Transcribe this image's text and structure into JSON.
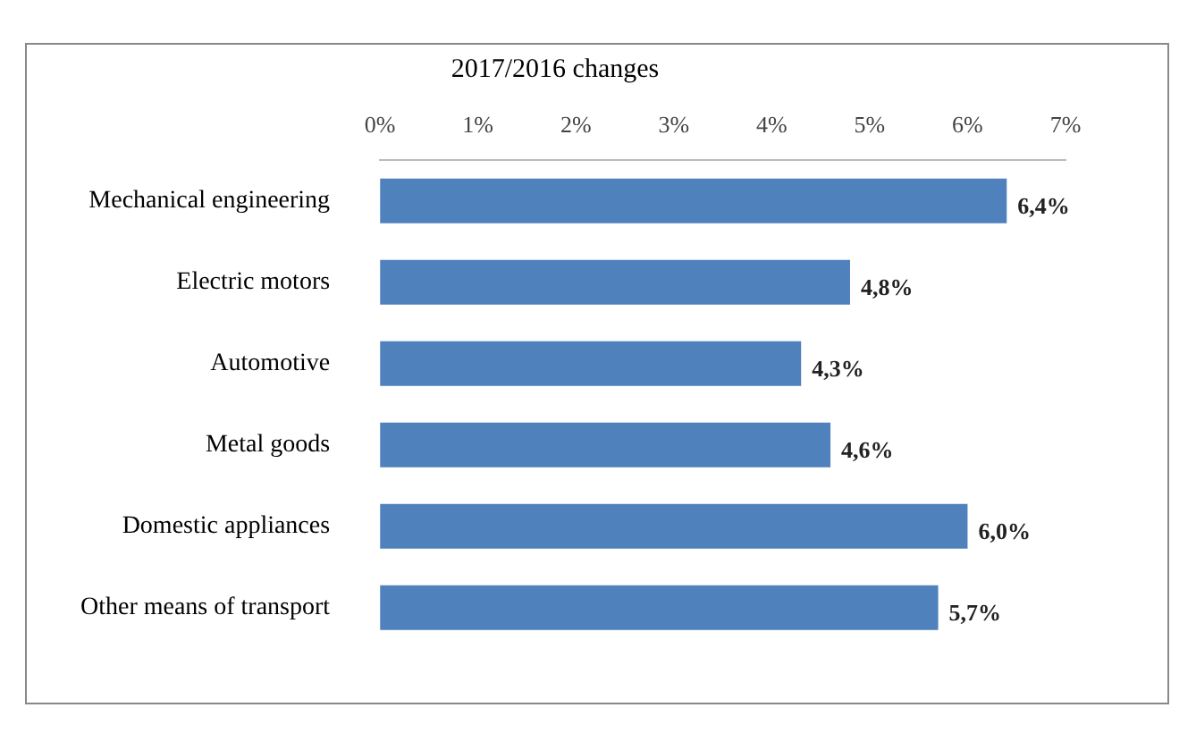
{
  "chart_data": {
    "type": "bar",
    "orientation": "horizontal",
    "title": "2017/2016 changes",
    "categories": [
      "Mechanical engineering",
      "Electric motors",
      "Automotive",
      "Metal goods",
      "Domestic appliances",
      "Other means of transport"
    ],
    "values": [
      6.4,
      4.8,
      4.3,
      4.6,
      6.0,
      5.7
    ],
    "value_labels": [
      "6,4%",
      "4,8%",
      "4,3%",
      "4,6%",
      "6,0%",
      "5,7%"
    ],
    "color": "#4f81bd",
    "xlim": [
      0,
      7
    ],
    "xticks": [
      {
        "value": 0,
        "label": "0%"
      },
      {
        "value": 1,
        "label": "1%"
      },
      {
        "value": 2,
        "label": "2%"
      },
      {
        "value": 3,
        "label": "3%"
      },
      {
        "value": 4,
        "label": "4%"
      },
      {
        "value": 5,
        "label": "5%"
      },
      {
        "value": 6,
        "label": "6%"
      },
      {
        "value": 7,
        "label": "7%"
      }
    ],
    "grid": false,
    "legend": false
  }
}
